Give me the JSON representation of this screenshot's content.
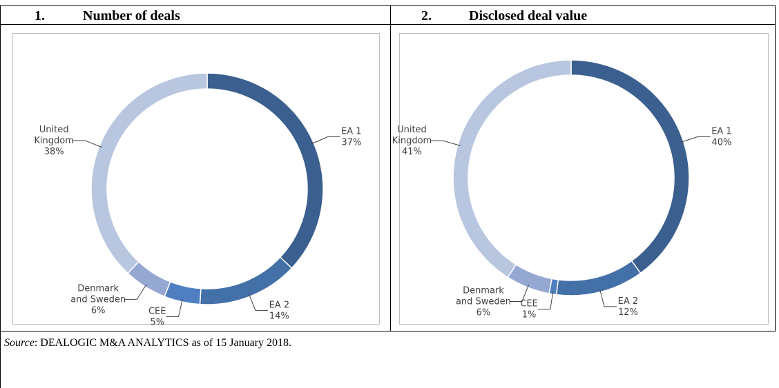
{
  "chart_data": [
    {
      "type": "donut",
      "number": "1.",
      "title": "Number of deals",
      "categories": [
        "EA 1",
        "EA 2",
        "CEE",
        "Denmark and Sweden",
        "United Kingdom"
      ],
      "values": [
        37,
        14,
        5,
        6,
        38
      ],
      "value_labels": [
        "37%",
        "14%",
        "5%",
        "6%",
        "38%"
      ],
      "colors": [
        "#3b5f8e",
        "#4470a8",
        "#4f7fc0",
        "#95a8d2",
        "#b9c6e0"
      ]
    },
    {
      "type": "donut",
      "number": "2.",
      "title": "Disclosed deal value",
      "categories": [
        "EA 1",
        "EA 2",
        "CEE",
        "Denmark and Sweden",
        "United Kingdom"
      ],
      "values": [
        40,
        12,
        1,
        6,
        41
      ],
      "value_labels": [
        "40%",
        "12%",
        "1%",
        "6%",
        "41%"
      ],
      "colors": [
        "#3b5f8e",
        "#4470a8",
        "#4f7fc0",
        "#95a8d2",
        "#b9c6e0"
      ]
    }
  ],
  "note": {
    "label": "Source",
    "text": ": DEALOGIC M&A ANALYTICS as of 15 January 2018."
  }
}
